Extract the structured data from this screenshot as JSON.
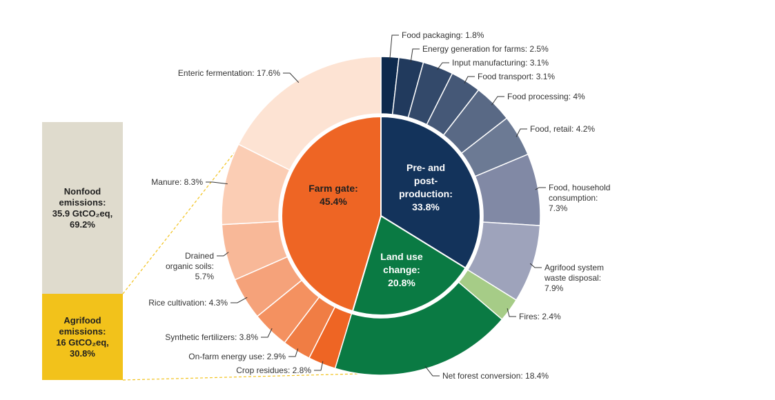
{
  "chart_data": {
    "type": "pie",
    "inner": [
      {
        "label": "Farm gate:",
        "value": 45.4,
        "value_text": "45.4%",
        "color": "#ee6524",
        "text_dark": true
      },
      {
        "label": "Land use change:",
        "value": 20.8,
        "value_text": "20.8%",
        "color": "#0a7a43",
        "text_dark": false
      },
      {
        "label": "Pre- and post-production:",
        "value": 33.8,
        "value_text": "33.8%",
        "color": "#13335b",
        "text_dark": false
      }
    ],
    "outer": [
      {
        "label": "Food packaging: 1.8%",
        "value": 1.8,
        "color": "#0d2a4e",
        "group": "pre"
      },
      {
        "label": "Energy generation for farms: 2.5%",
        "value": 2.5,
        "color": "#213a5d",
        "group": "pre"
      },
      {
        "label": "Input manufacturing: 3.1%",
        "value": 3.1,
        "color": "#33496a",
        "group": "pre"
      },
      {
        "label": "Food transport: 3.1%",
        "value": 3.1,
        "color": "#455877",
        "group": "pre"
      },
      {
        "label": "Food processing: 4%",
        "value": 4.0,
        "color": "#596985",
        "group": "pre"
      },
      {
        "label": "Food, retail: 4.2%",
        "value": 4.2,
        "color": "#6c7a94",
        "group": "pre"
      },
      {
        "label": "Food, household consumption: 7.3%",
        "value": 7.3,
        "color": "#8189a5",
        "group": "pre"
      },
      {
        "label": "Agrifood system waste disposal: 7.9%",
        "value": 7.9,
        "color": "#9ea3bb",
        "group": "pre"
      },
      {
        "label": "Fires: 2.4%",
        "value": 2.4,
        "color": "#a6cc87",
        "group": "luc"
      },
      {
        "label": "Net forest conversion: 18.4%",
        "value": 18.4,
        "color": "#0a7a43",
        "group": "luc"
      },
      {
        "label": "Crop residues: 2.8%",
        "value": 2.8,
        "color": "#ee6524",
        "group": "farm"
      },
      {
        "label": "On-farm energy use: 2.9%",
        "value": 2.9,
        "color": "#f07d44",
        "group": "farm"
      },
      {
        "label": "Synthetic fertilizers: 3.8%",
        "value": 3.8,
        "color": "#f49160",
        "group": "farm"
      },
      {
        "label": "Rice cultivation: 4.3%",
        "value": 4.3,
        "color": "#f5a27a",
        "group": "farm"
      },
      {
        "label": "Drained organic soils: 5.7%",
        "value": 5.7,
        "color": "#f8b898",
        "group": "farm"
      },
      {
        "label": "Manure: 8.3%",
        "value": 8.3,
        "color": "#fbcdb4",
        "group": "farm"
      },
      {
        "label": "Enteric fermentation: 17.6%",
        "value": 17.6,
        "color": "#fde3d3",
        "group": "farm"
      }
    ],
    "totals": [
      {
        "line1": "Nonfood",
        "line2": "emissions:",
        "line3": "35.9 GtCO₂eq,",
        "line4": "69.2%",
        "value": 69.2,
        "color": "#dfdbcd"
      },
      {
        "line1": "Agrifood",
        "line2": "emissions:",
        "line3": "16 GtCO₂eq,",
        "line4": "30.8%",
        "value": 30.8,
        "color": "#f2c21b"
      }
    ],
    "connector_color": "#f2c21b"
  }
}
